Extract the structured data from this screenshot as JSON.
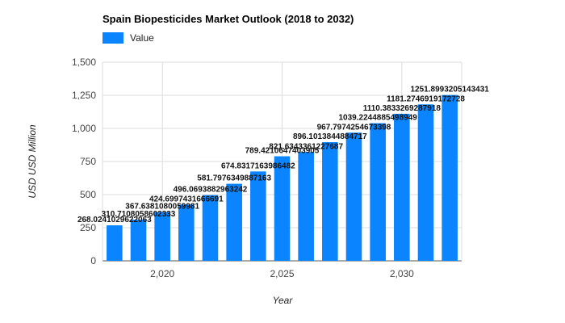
{
  "chart_data": {
    "type": "bar",
    "title": "Spain Biopesticides Market Outlook (2018 to 2032)",
    "xlabel": "Year",
    "ylabel": "USD USD Million",
    "legend": "top-left",
    "grid": true,
    "ylim": [
      0,
      1500
    ],
    "yticks": [
      0,
      250,
      500,
      750,
      1000,
      1250,
      1500
    ],
    "ytick_labels": [
      "0",
      "250",
      "500",
      "750",
      "1,000",
      "1,250",
      "1,500"
    ],
    "xticks": [
      2020,
      2025,
      2030
    ],
    "xtick_labels": [
      "2,020",
      "2,025",
      "2,030"
    ],
    "color": "#0a84ff",
    "series": [
      {
        "name": "Value",
        "x": [
          2018,
          2019,
          2020,
          2021,
          2022,
          2023,
          2024,
          2025,
          2026,
          2027,
          2028,
          2029,
          2030,
          2031,
          2032
        ],
        "values": [
          268.0241029622063,
          310.7108058602333,
          367.6381080059981,
          424.6997431666691,
          496.0693882963242,
          581.7976349887163,
          674.8317163986482,
          789.4210647403905,
          821.6343361227687,
          896.1013844884717,
          967.7974254673398,
          1039.2244885498949,
          1110.383326928791,
          1181.274691917273,
          1251.8993205143431
        ],
        "labels": [
          "268.0241029622063",
          "310.7108058602333",
          "367.6381080059981",
          "424.6997431666691",
          "496.0693882963242",
          "581.7976349887163",
          "674.8317163986482",
          "789.4210647403905",
          "821.6343361227687",
          "896.1013844884717",
          "967.7974254673398",
          "1039.2244885498949",
          "1110.3833269287918",
          "1181.2746919172728",
          "1251.8993205143431"
        ]
      }
    ]
  }
}
